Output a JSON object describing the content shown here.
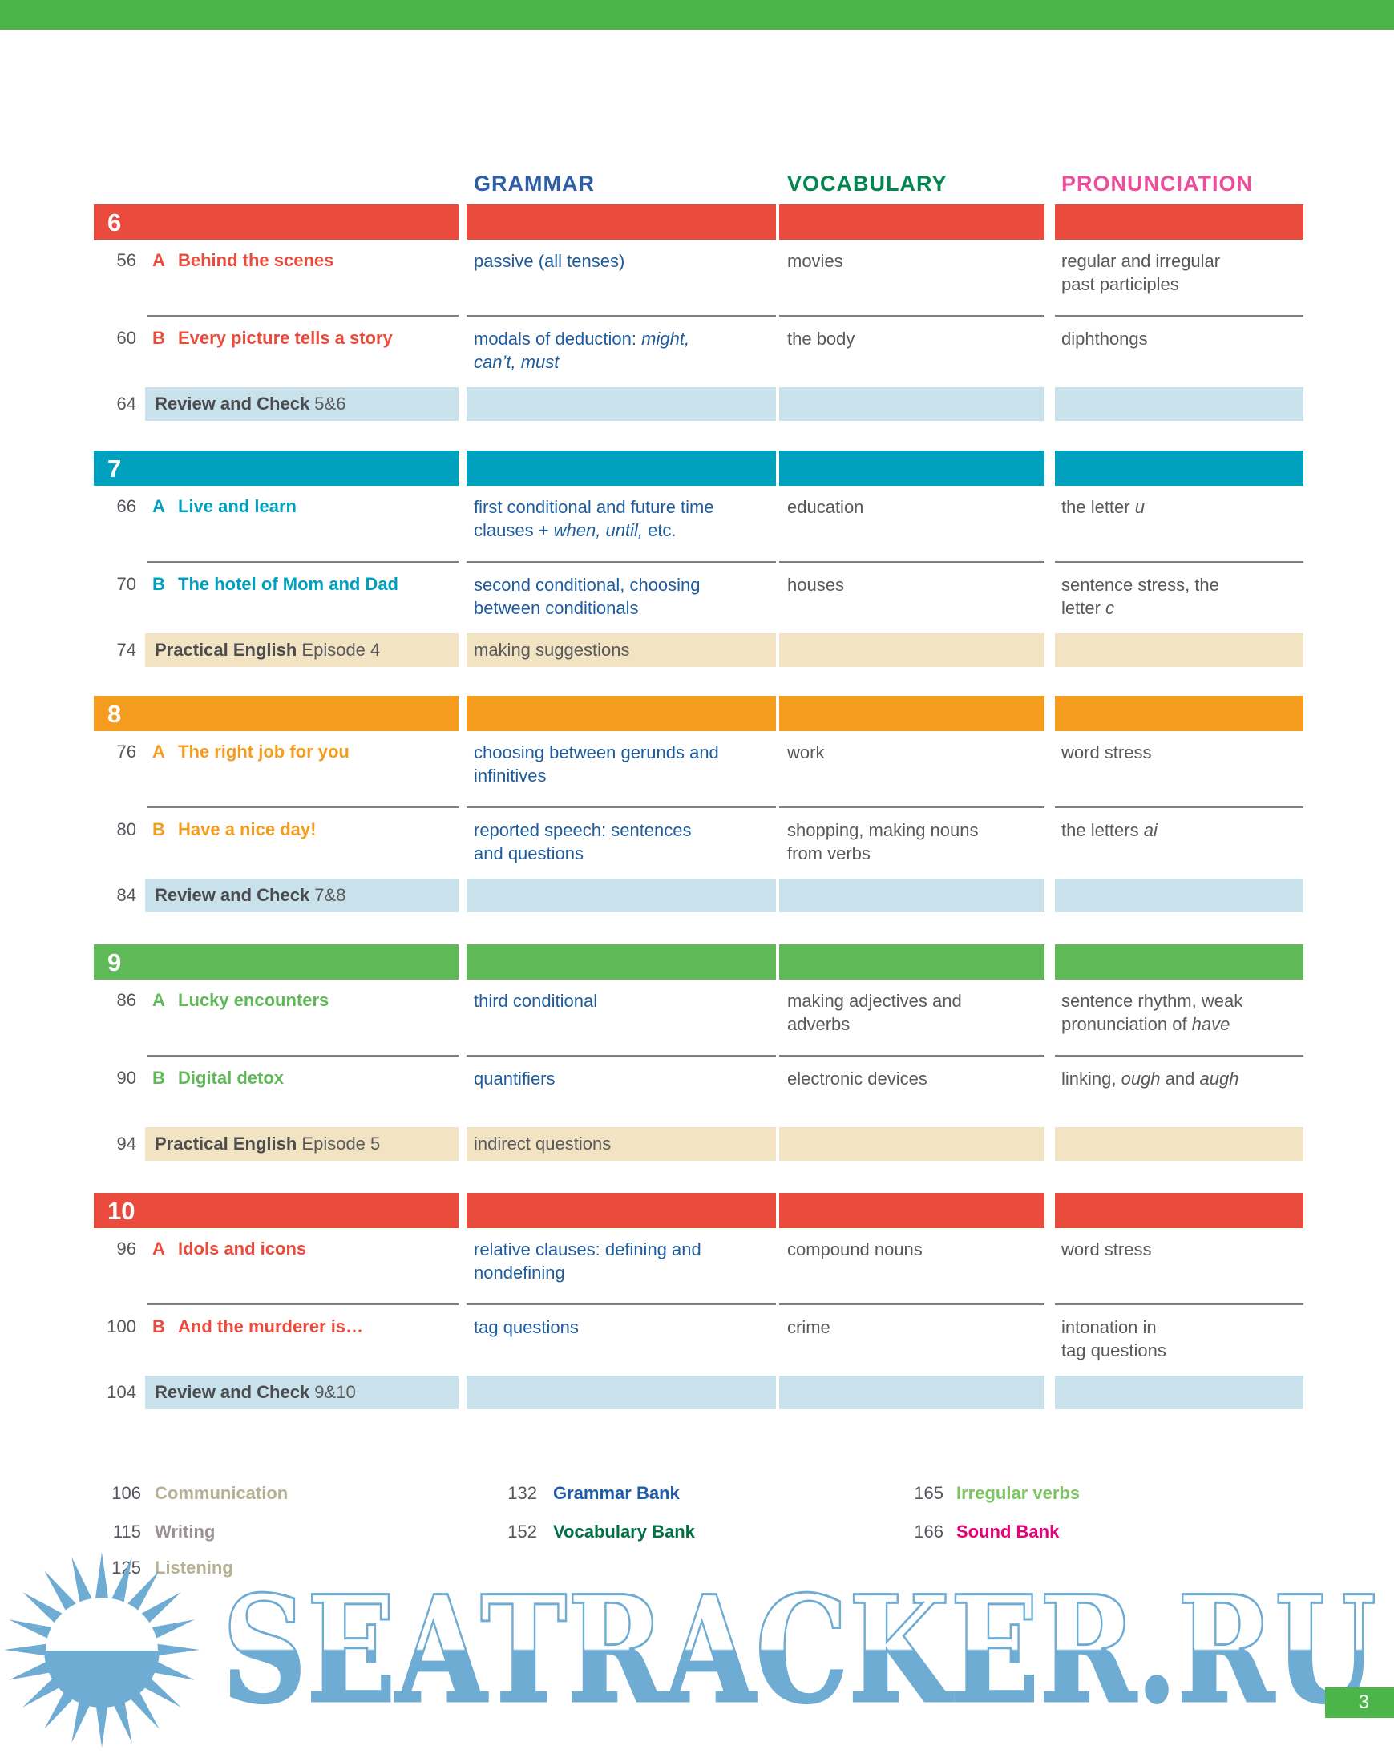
{
  "colors": {
    "top_bar": "#4CB549",
    "page_box": "#4CB549",
    "header_grammar": "#2C5FA6",
    "header_vocabulary": "#00874F",
    "header_pronunciation": "#EC4E9B",
    "review_bar": "#C9E1EB",
    "practical_bar": "#F2E4C3",
    "watermark_blue": "#6FACD3"
  },
  "headers": {
    "grammar": "GRAMMAR",
    "vocabulary": "VOCABULARY",
    "pronunciation": "PRONUNCIATION"
  },
  "sections": [
    {
      "unit": "6",
      "color": "#EA4B3C",
      "rows": [
        {
          "page": "56",
          "letter": "A",
          "title": "Behind the scenes",
          "grammar": [
            {
              "t": "passive (all tenses)"
            }
          ],
          "vocabulary": [
            {
              "t": "movies"
            }
          ],
          "pronunciation": [
            {
              "t": "regular and irregular"
            },
            {
              "br": true
            },
            {
              "t": "past participles"
            }
          ]
        },
        {
          "page": "60",
          "letter": "B",
          "title": "Every picture tells a story",
          "grammar": [
            {
              "t": "modals of deduction: "
            },
            {
              "t": "might,",
              "i": true
            },
            {
              "br": true
            },
            {
              "t": "can’t, must",
              "i": true
            }
          ],
          "vocabulary": [
            {
              "t": "the body"
            }
          ],
          "pronunciation": [
            {
              "t": "diphthongs"
            }
          ]
        }
      ],
      "footer": {
        "type": "review",
        "page": "64",
        "bold": "Review and Check",
        "rest": " 5&6"
      }
    },
    {
      "unit": "7",
      "color": "#00A1BF",
      "rows": [
        {
          "page": "66",
          "letter": "A",
          "title": "Live and learn",
          "grammar": [
            {
              "t": "first conditional and future time"
            },
            {
              "br": true
            },
            {
              "t": "clauses + "
            },
            {
              "t": "when, until,",
              "i": true
            },
            {
              "t": " etc."
            }
          ],
          "vocabulary": [
            {
              "t": "education"
            }
          ],
          "pronunciation": [
            {
              "t": "the letter "
            },
            {
              "t": "u",
              "i": true
            }
          ]
        },
        {
          "page": "70",
          "letter": "B",
          "title": "The hotel of Mom and Dad",
          "grammar": [
            {
              "t": "second conditional, choosing"
            },
            {
              "br": true
            },
            {
              "t": "between conditionals"
            }
          ],
          "vocabulary": [
            {
              "t": "houses"
            }
          ],
          "pronunciation": [
            {
              "t": "sentence stress, the"
            },
            {
              "br": true
            },
            {
              "t": "letter "
            },
            {
              "t": "c",
              "i": true
            }
          ]
        }
      ],
      "footer": {
        "type": "practical",
        "page": "74",
        "bold": "Practical English",
        "rest": " Episode 4",
        "grammar": [
          {
            "t": "making suggestions"
          }
        ]
      }
    },
    {
      "unit": "8",
      "color": "#F59C1E",
      "rows": [
        {
          "page": "76",
          "letter": "A",
          "title": "The right job for you",
          "grammar": [
            {
              "t": "choosing between gerunds and"
            },
            {
              "br": true
            },
            {
              "t": "infinitives"
            }
          ],
          "vocabulary": [
            {
              "t": "work"
            }
          ],
          "pronunciation": [
            {
              "t": "word stress"
            }
          ]
        },
        {
          "page": "80",
          "letter": "B",
          "title": "Have a nice day!",
          "grammar": [
            {
              "t": "reported speech: sentences"
            },
            {
              "br": true
            },
            {
              "t": "and questions"
            }
          ],
          "vocabulary": [
            {
              "t": "shopping, making nouns"
            },
            {
              "br": true
            },
            {
              "t": "from verbs"
            }
          ],
          "pronunciation": [
            {
              "t": "the letters "
            },
            {
              "t": "ai",
              "i": true
            }
          ]
        }
      ],
      "footer": {
        "type": "review",
        "page": "84",
        "bold": "Review and Check",
        "rest": " 7&8"
      }
    },
    {
      "unit": "9",
      "color": "#5FB957",
      "rows": [
        {
          "page": "86",
          "letter": "A",
          "title": "Lucky encounters",
          "grammar": [
            {
              "t": "third conditional"
            }
          ],
          "vocabulary": [
            {
              "t": "making adjectives and"
            },
            {
              "br": true
            },
            {
              "t": "adverbs"
            }
          ],
          "pronunciation": [
            {
              "t": "sentence rhythm, weak"
            },
            {
              "br": true
            },
            {
              "t": "pronunciation of "
            },
            {
              "t": "have",
              "i": true
            }
          ]
        },
        {
          "page": "90",
          "letter": "B",
          "title": "Digital detox",
          "grammar": [
            {
              "t": "quantifiers"
            }
          ],
          "vocabulary": [
            {
              "t": "electronic devices"
            }
          ],
          "pronunciation": [
            {
              "t": "linking, "
            },
            {
              "t": "ough",
              "i": true
            },
            {
              "t": " and "
            },
            {
              "t": "augh",
              "i": true
            }
          ]
        }
      ],
      "footer": {
        "type": "practical",
        "page": "94",
        "bold": "Practical English",
        "rest": " Episode 5",
        "grammar": [
          {
            "t": "indirect questions"
          }
        ]
      }
    },
    {
      "unit": "10",
      "color": "#EA4B3C",
      "rows": [
        {
          "page": "96",
          "letter": "A",
          "title": "Idols and icons",
          "grammar": [
            {
              "t": "relative clauses: defining and"
            },
            {
              "br": true
            },
            {
              "t": "nondefining"
            }
          ],
          "vocabulary": [
            {
              "t": "compound nouns"
            }
          ],
          "pronunciation": [
            {
              "t": "word stress"
            }
          ]
        },
        {
          "page": "100",
          "letter": "B",
          "title": "And the murderer is…",
          "grammar": [
            {
              "t": "tag questions"
            }
          ],
          "vocabulary": [
            {
              "t": "crime"
            }
          ],
          "pronunciation": [
            {
              "t": "intonation in"
            },
            {
              "br": true
            },
            {
              "t": "tag questions"
            }
          ]
        }
      ],
      "footer": {
        "type": "review",
        "page": "104",
        "bold": "Review and Check",
        "rest": " 9&10"
      }
    }
  ],
  "resources": {
    "col1": [
      {
        "page": "106",
        "label": "Communication",
        "color": "#B5B192"
      },
      {
        "page": "115",
        "label": "Writing",
        "color": "#9D9097"
      },
      {
        "page": "125",
        "label": "Listening",
        "color": "#B5B192"
      }
    ],
    "col2": [
      {
        "page": "132",
        "label": "Grammar Bank",
        "color": "#1E5CA8"
      },
      {
        "page": "152",
        "label": "Vocabulary Bank",
        "color": "#006F46"
      }
    ],
    "col3": [
      {
        "page": "165",
        "label": "Irregular verbs",
        "color": "#7CC464"
      },
      {
        "page": "166",
        "label": "Sound Bank",
        "color": "#E3017C"
      }
    ]
  },
  "watermark": {
    "text": "SEATRACKER.RU"
  },
  "page": {
    "number": "3"
  }
}
